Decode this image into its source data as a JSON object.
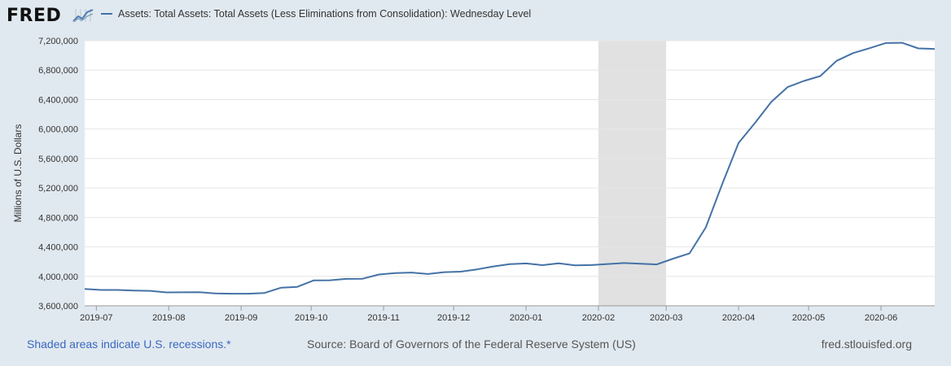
{
  "brand": {
    "logo_text": "FRED",
    "logo_icon": "chart-line-icon"
  },
  "legend": {
    "series_label": "Assets: Total Assets: Total Assets (Less Eliminations from Consolidation): Wednesday Level",
    "color": "#4572a7"
  },
  "footer": {
    "recession_note": "Shaded areas indicate U.S. recessions.*",
    "source": "Source: Board of Governors of the Federal Reserve System (US)",
    "site": "fred.stlouisfed.org"
  },
  "chart_data": {
    "type": "line",
    "title": "",
    "xlabel": "",
    "ylabel": "Millions of U.S. Dollars",
    "ylim": [
      3600000,
      7200000
    ],
    "xlim": [
      "2019-06-26",
      "2020-06-24"
    ],
    "y_ticks": [
      3600000,
      4000000,
      4400000,
      4800000,
      5200000,
      5600000,
      6000000,
      6400000,
      6800000,
      7200000
    ],
    "y_tick_labels": [
      "3,600,000",
      "4,000,000",
      "4,400,000",
      "4,800,000",
      "5,200,000",
      "5,600,000",
      "6,000,000",
      "6,400,000",
      "6,800,000",
      "7,200,000"
    ],
    "x_ticks": [
      "2019-07-01",
      "2019-08-01",
      "2019-09-01",
      "2019-10-01",
      "2019-11-01",
      "2019-12-01",
      "2020-01-01",
      "2020-02-01",
      "2020-03-01",
      "2020-04-01",
      "2020-05-01",
      "2020-06-01"
    ],
    "x_tick_labels": [
      "2019-07",
      "2019-08",
      "2019-09",
      "2019-10",
      "2019-11",
      "2019-12",
      "2020-01",
      "2020-02",
      "2020-03",
      "2020-04",
      "2020-05",
      "2020-06"
    ],
    "recession": {
      "start": "2020-02-01",
      "end": "2020-03-01",
      "color": "#e1e1e1"
    },
    "grid": true,
    "legend_position": "top",
    "series": [
      {
        "color": "#4572a7",
        "x": [
          "2019-06-26",
          "2019-07-03",
          "2019-07-10",
          "2019-07-17",
          "2019-07-24",
          "2019-07-31",
          "2019-08-07",
          "2019-08-14",
          "2019-08-21",
          "2019-08-28",
          "2019-09-04",
          "2019-09-11",
          "2019-09-18",
          "2019-09-25",
          "2019-10-02",
          "2019-10-09",
          "2019-10-16",
          "2019-10-23",
          "2019-10-30",
          "2019-11-06",
          "2019-11-13",
          "2019-11-20",
          "2019-11-27",
          "2019-12-04",
          "2019-12-11",
          "2019-12-18",
          "2019-12-25",
          "2020-01-01",
          "2020-01-08",
          "2020-01-15",
          "2020-01-22",
          "2020-01-29",
          "2020-02-05",
          "2020-02-12",
          "2020-02-19",
          "2020-02-26",
          "2020-03-04",
          "2020-03-11",
          "2020-03-18",
          "2020-03-25",
          "2020-04-01",
          "2020-04-08",
          "2020-04-15",
          "2020-04-22",
          "2020-04-29",
          "2020-05-06",
          "2020-05-13",
          "2020-05-20",
          "2020-05-27",
          "2020-06-03",
          "2020-06-10",
          "2020-06-17",
          "2020-06-24"
        ],
        "values": [
          3830000,
          3815000,
          3815000,
          3808000,
          3803000,
          3782000,
          3783000,
          3784000,
          3769000,
          3765000,
          3765000,
          3775000,
          3845000,
          3857000,
          3945000,
          3947000,
          3966000,
          3968000,
          4025000,
          4045000,
          4052000,
          4032000,
          4057000,
          4064000,
          4095000,
          4135000,
          4165000,
          4175000,
          4152000,
          4177000,
          4149000,
          4153000,
          4168000,
          4181000,
          4172000,
          4162000,
          4241000,
          4311000,
          4666000,
          5253000,
          5811000,
          6082000,
          6367000,
          6570000,
          6653000,
          6720000,
          6926000,
          7031000,
          7097000,
          7168000,
          7171000,
          7095000,
          7087000
        ]
      }
    ]
  }
}
